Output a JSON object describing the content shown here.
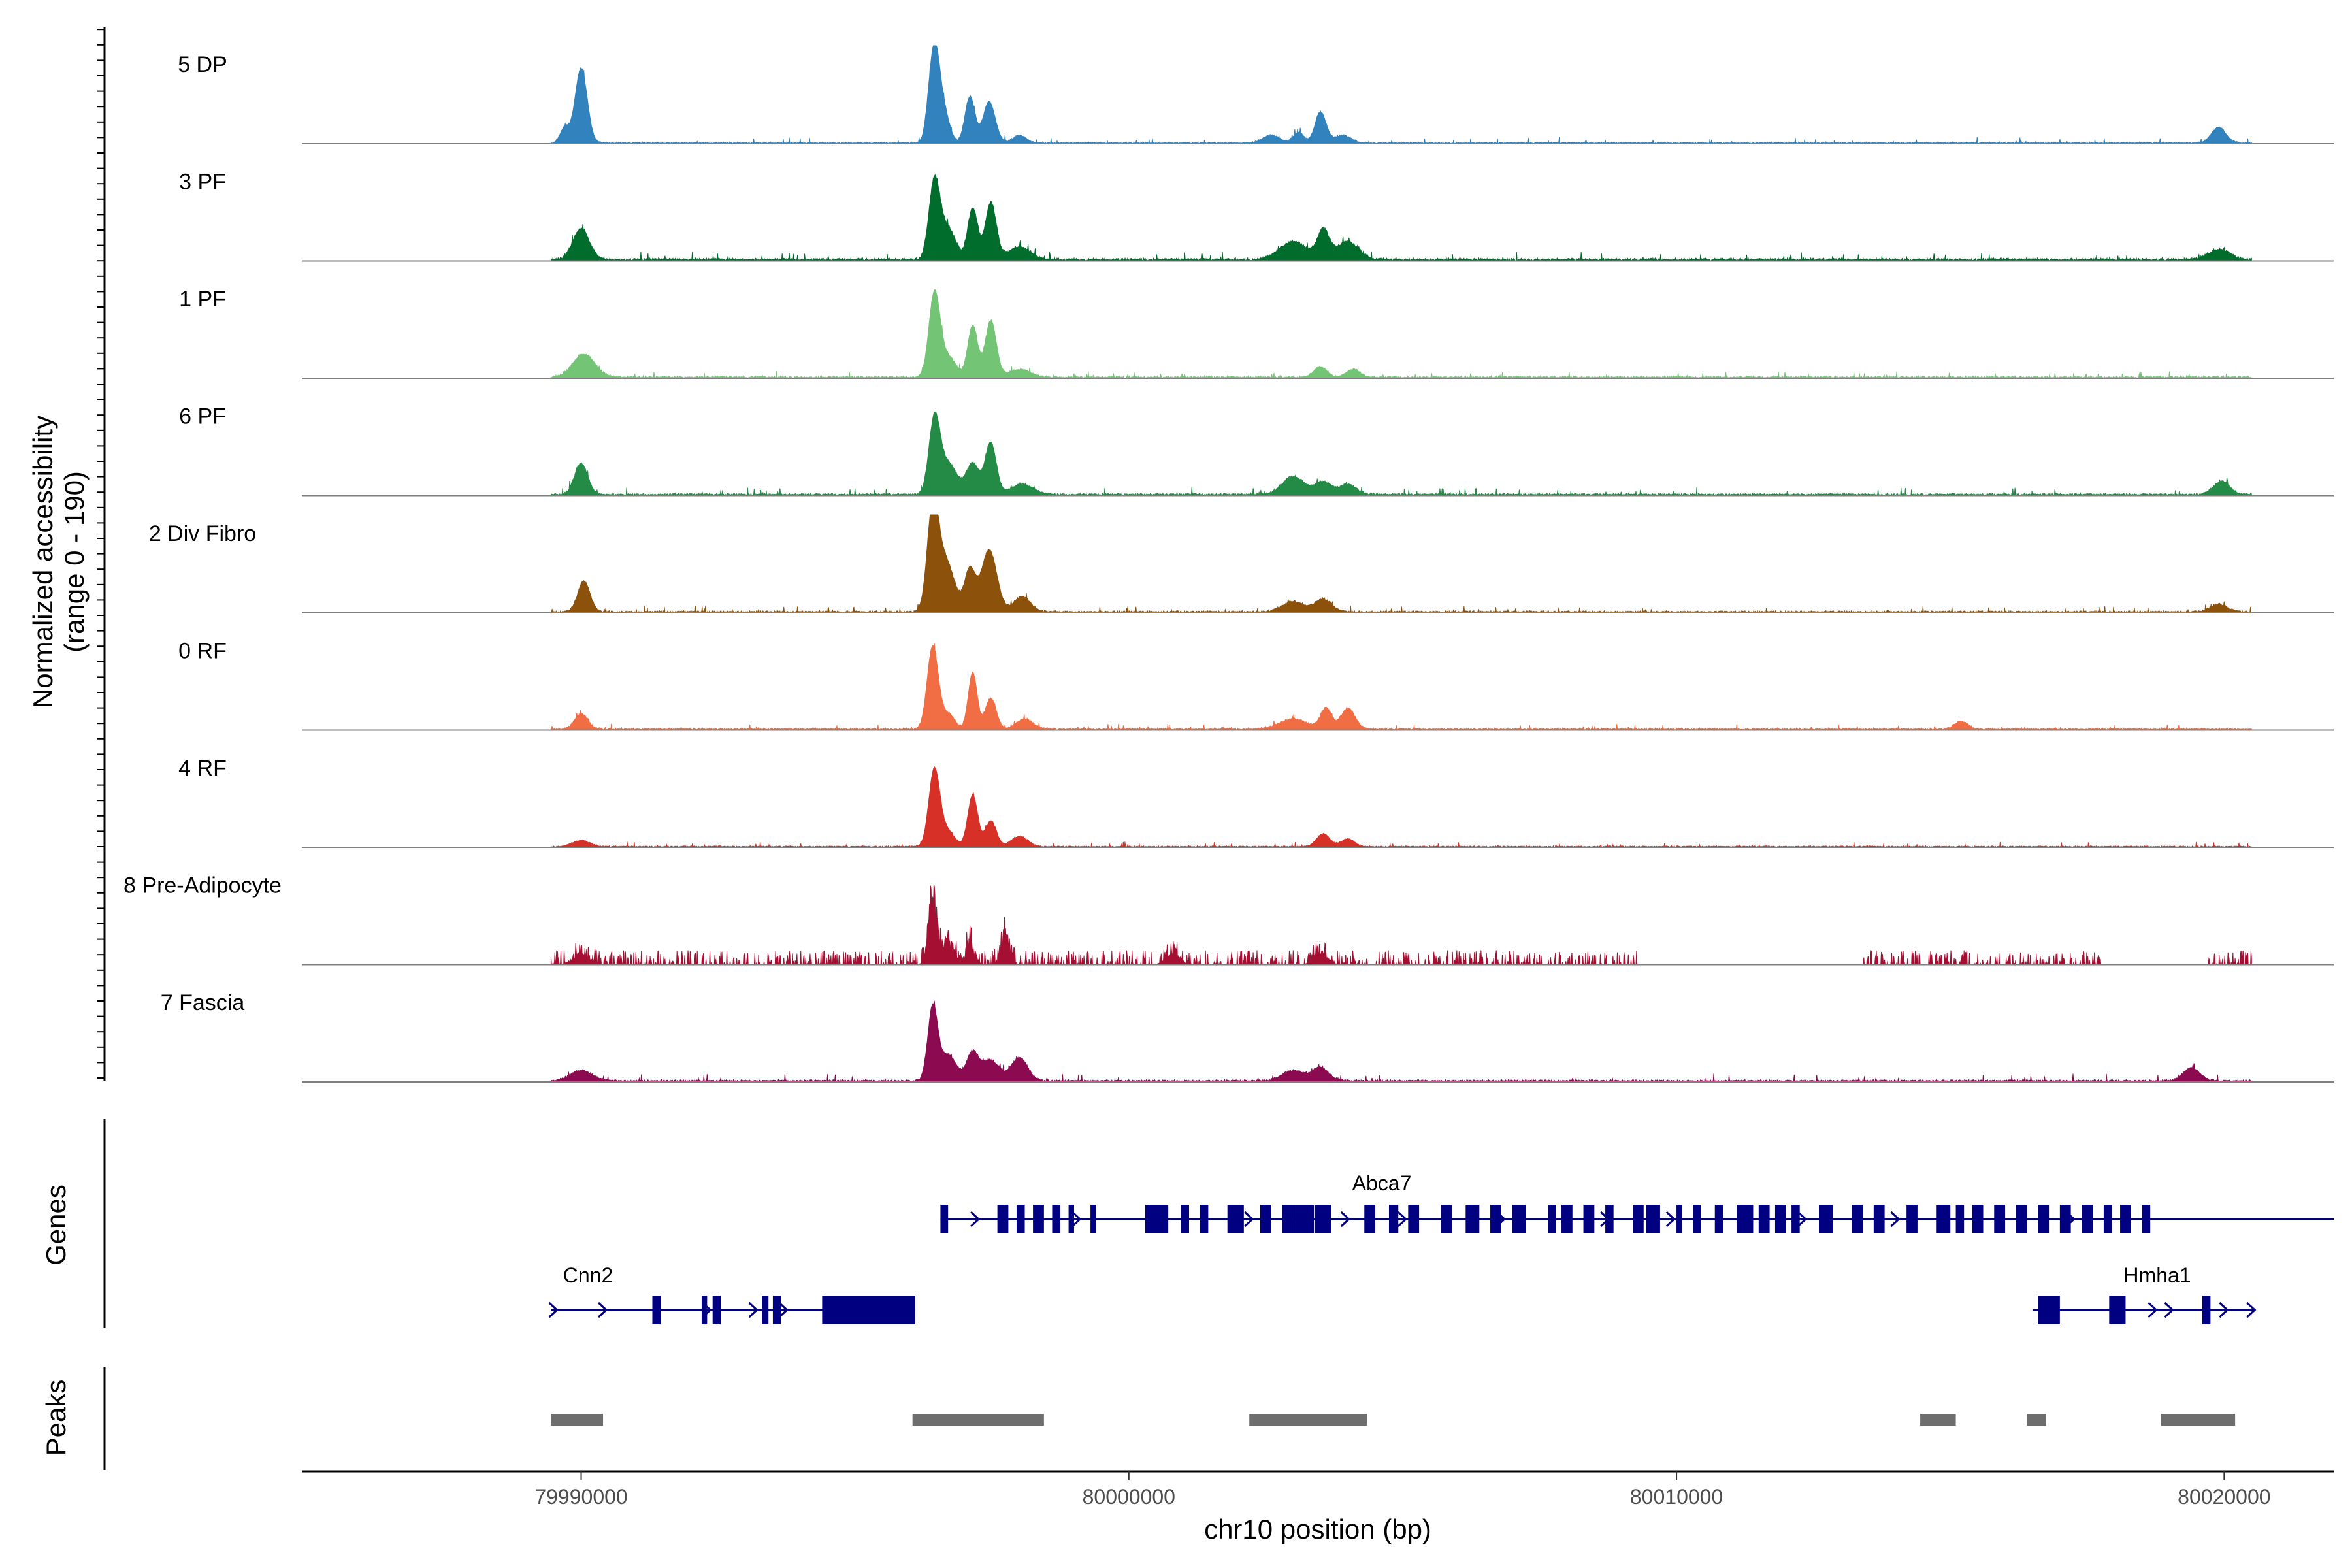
{
  "chart_data": {
    "type": "area",
    "title": "",
    "ylabel": "Normalized accessibility",
    "ylabel_range": "(range 0 - 190)",
    "xlabel": "chr10 position (bp)",
    "xlim": [
      79984900,
      80022000
    ],
    "ylim": [
      0,
      190
    ],
    "x_ticks": [
      79990000,
      80000000,
      80010000,
      80020000
    ],
    "x_tick_labels": [
      "79990000",
      "80000000",
      "80010000",
      "80020000"
    ],
    "data_range": [
      79989450,
      80020500
    ],
    "tracks": [
      {
        "name": "5 DP",
        "color": "#3182bd",
        "baseline": 2,
        "peaks": [
          [
            79989700,
            30,
            80
          ],
          [
            79990000,
            145,
            110
          ],
          [
            79996500,
            40,
            70
          ],
          [
            79996420,
            145,
            90
          ],
          [
            79996600,
            70,
            110
          ],
          [
            79997100,
            90,
            90
          ],
          [
            79997450,
            80,
            110
          ],
          [
            79998000,
            15,
            120
          ],
          [
            80002600,
            15,
            150
          ],
          [
            80003100,
            20,
            100
          ],
          [
            80003500,
            60,
            100
          ],
          [
            80003900,
            15,
            150
          ],
          [
            80019900,
            30,
            130
          ]
        ],
        "noise": 6,
        "seed": 11
      },
      {
        "name": "3 PF",
        "color": "#006d2c",
        "baseline": 4,
        "peaks": [
          [
            79990000,
            60,
            150
          ],
          [
            79996450,
            150,
            100
          ],
          [
            79996700,
            60,
            140
          ],
          [
            79997150,
            100,
            90
          ],
          [
            79997480,
            110,
            100
          ],
          [
            79998000,
            25,
            200
          ],
          [
            80003000,
            35,
            250
          ],
          [
            80003550,
            55,
            110
          ],
          [
            80004000,
            35,
            200
          ],
          [
            80019900,
            20,
            200
          ]
        ],
        "noise": 8,
        "seed": 23
      },
      {
        "name": "1 PF",
        "color": "#74c476",
        "baseline": 3,
        "peaks": [
          [
            79990050,
            45,
            200
          ],
          [
            79996450,
            160,
            100
          ],
          [
            79996700,
            40,
            140
          ],
          [
            79997150,
            100,
            90
          ],
          [
            79997480,
            110,
            100
          ],
          [
            79998000,
            15,
            200
          ],
          [
            80003500,
            20,
            120
          ],
          [
            80004100,
            15,
            120
          ]
        ],
        "noise": 6,
        "seed": 37
      },
      {
        "name": "6 PF",
        "color": "#238b45",
        "baseline": 3,
        "peaks": [
          [
            79990000,
            60,
            120
          ],
          [
            79996450,
            140,
            100
          ],
          [
            79996700,
            60,
            160
          ],
          [
            79997150,
            60,
            120
          ],
          [
            79997480,
            100,
            100
          ],
          [
            79998050,
            20,
            200
          ],
          [
            80003000,
            35,
            200
          ],
          [
            80003550,
            25,
            150
          ],
          [
            80004000,
            20,
            150
          ],
          [
            80019950,
            25,
            150
          ]
        ],
        "noise": 7,
        "seed": 51
      },
      {
        "name": "2 Div Fibro",
        "color": "#8c510a",
        "baseline": 3,
        "peaks": [
          [
            79990050,
            60,
            110
          ],
          [
            79996420,
            190,
            100
          ],
          [
            79996650,
            100,
            160
          ],
          [
            79997100,
            80,
            100
          ],
          [
            79997450,
            120,
            140
          ],
          [
            79998050,
            30,
            150
          ],
          [
            80003000,
            20,
            200
          ],
          [
            80003550,
            25,
            150
          ],
          [
            80019900,
            15,
            150
          ]
        ],
        "noise": 6,
        "seed": 67
      },
      {
        "name": "0 RF",
        "color": "#f16d43",
        "baseline": 3,
        "peaks": [
          [
            79990000,
            30,
            120
          ],
          [
            79996420,
            160,
            100
          ],
          [
            79996700,
            30,
            120
          ],
          [
            79997150,
            110,
            80
          ],
          [
            79997480,
            60,
            100
          ],
          [
            79998100,
            20,
            150
          ],
          [
            80003000,
            20,
            250
          ],
          [
            80003600,
            40,
            100
          ],
          [
            80004000,
            40,
            130
          ],
          [
            80015200,
            15,
            120
          ]
        ],
        "noise": 5,
        "seed": 79
      },
      {
        "name": "4 RF",
        "color": "#d73027",
        "baseline": 2,
        "peaks": [
          [
            79990000,
            12,
            150
          ],
          [
            79996450,
            150,
            100
          ],
          [
            79996700,
            30,
            120
          ],
          [
            79997150,
            100,
            90
          ],
          [
            79997480,
            50,
            100
          ],
          [
            79998000,
            20,
            150
          ],
          [
            80003550,
            25,
            120
          ],
          [
            80004000,
            15,
            120
          ]
        ],
        "noise": 5,
        "seed": 97
      },
      {
        "name": "8 Pre-Adipocyte",
        "color": "#a50f32",
        "baseline": 0,
        "peaks": [
          [
            79996420,
            160,
            80
          ],
          [
            79996700,
            60,
            100
          ],
          [
            79997100,
            55,
            80
          ],
          [
            79997750,
            75,
            80
          ],
          [
            79990000,
            25,
            150
          ],
          [
            80000800,
            30,
            120
          ],
          [
            80003500,
            30,
            120
          ]
        ],
        "noise": 28,
        "seed": 113,
        "sparse": true,
        "gaps": [
          [
            80009300,
            80013400
          ],
          [
            80017800,
            80019700
          ]
        ]
      },
      {
        "name": "7 Fascia",
        "color": "#8b0a50",
        "baseline": 3,
        "peaks": [
          [
            79990000,
            20,
            200
          ],
          [
            79996420,
            140,
            90
          ],
          [
            79996700,
            50,
            150
          ],
          [
            79997150,
            55,
            110
          ],
          [
            79997480,
            40,
            150
          ],
          [
            79998000,
            45,
            150
          ],
          [
            80003000,
            20,
            200
          ],
          [
            80003500,
            25,
            150
          ],
          [
            80019400,
            25,
            150
          ]
        ],
        "noise": 7,
        "seed": 131
      }
    ],
    "genes_panel_label": "Genes",
    "peaks_panel_label": "Peaks",
    "genes": [
      {
        "name": "Abca7",
        "start": 79996560,
        "end": 80022780,
        "row": 0,
        "exons": [
          [
            79996560,
            79996700
          ],
          [
            79997600,
            79997800
          ],
          [
            79997950,
            79998100
          ],
          [
            79998250,
            79998450
          ],
          [
            79998600,
            79998750
          ],
          [
            79998900,
            79999000
          ],
          [
            79999300,
            79999400
          ],
          [
            80000300,
            80000720
          ],
          [
            80000950,
            80001100
          ],
          [
            80001300,
            80001450
          ],
          [
            80001800,
            80002100
          ],
          [
            80002400,
            80002600
          ],
          [
            80002800,
            80003050
          ],
          [
            80003050,
            80003380
          ],
          [
            80003400,
            80003700
          ],
          [
            80004300,
            80004500
          ],
          [
            80004750,
            80004920
          ],
          [
            80005100,
            80005300
          ],
          [
            80005700,
            80005900
          ],
          [
            80006150,
            80006400
          ],
          [
            80006600,
            80006800
          ],
          [
            80007000,
            80007250
          ],
          [
            80007650,
            80007800
          ],
          [
            80007900,
            80008100
          ],
          [
            80008300,
            80008500
          ],
          [
            80008700,
            80008850
          ],
          [
            80009200,
            80009400
          ],
          [
            80009450,
            80009700
          ],
          [
            80010000,
            80010100
          ],
          [
            80010300,
            80010450
          ],
          [
            80010700,
            80010850
          ],
          [
            80011100,
            80011400
          ],
          [
            80011500,
            80011700
          ],
          [
            80011800,
            80012000
          ],
          [
            80012100,
            80012250
          ],
          [
            80012600,
            80012850
          ],
          [
            80013200,
            80013400
          ],
          [
            80013600,
            80013800
          ],
          [
            80014200,
            80014400
          ],
          [
            80014750,
            80015000
          ],
          [
            80015100,
            80015250
          ],
          [
            80015400,
            80015600
          ],
          [
            80015800,
            80016000
          ],
          [
            80016200,
            80016400
          ],
          [
            80016600,
            80016800
          ],
          [
            80017000,
            80017200
          ],
          [
            80017400,
            80017600
          ],
          [
            80017800,
            80017950
          ],
          [
            80018100,
            80018300
          ],
          [
            80018500,
            80018650
          ]
        ],
        "arrows": [
          79997200,
          79999050,
          80000500,
          80002200,
          80003960,
          80005000,
          80006800,
          80008700,
          80009900,
          80010800,
          80012300,
          80014000,
          80017200
        ]
      },
      {
        "name": "Cnn2",
        "start": 79989450,
        "end": 79996100,
        "row": 1,
        "exons": [
          [
            79991300,
            79991450
          ],
          [
            79992200,
            79992300
          ],
          [
            79992400,
            79992550
          ],
          [
            79993300,
            79993420
          ],
          [
            79993500,
            79993650
          ],
          [
            79994400,
            79996100
          ]
        ],
        "arrows": [
          79989500,
          79990400,
          79992300,
          79993150,
          79993700
        ]
      },
      {
        "name": "Hmha1",
        "start": 80016500,
        "end": 80020550,
        "row": 1,
        "exons": [
          [
            80016600,
            80017000
          ],
          [
            80017900,
            80018200
          ],
          [
            80019600,
            80019750
          ]
        ],
        "arrows": [
          80016800,
          80018700,
          80019000,
          80020000,
          80020500
        ]
      }
    ],
    "peak_regions": [
      [
        79989450,
        79990400
      ],
      [
        79996050,
        79998450
      ],
      [
        80002200,
        80004350
      ],
      [
        80014450,
        80015100
      ],
      [
        80016400,
        80016750
      ],
      [
        80018850,
        80020200
      ]
    ]
  }
}
